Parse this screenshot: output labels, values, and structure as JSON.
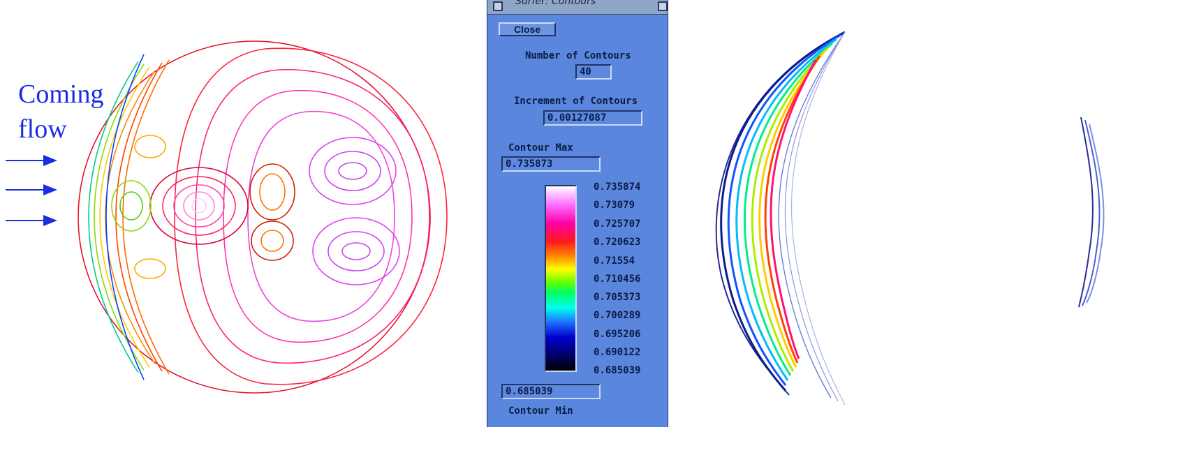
{
  "annotation": {
    "line1": "Coming",
    "line2": "flow",
    "color": "#1a2ee0"
  },
  "panel": {
    "title": "Surfer: Contours",
    "close_label": "Close",
    "number_of_contours_label": "Number of Contours",
    "number_of_contours_value": "40",
    "increment_label": "Increment of Contours",
    "increment_value": "0.00127087",
    "contour_max_label": "Contour Max",
    "contour_max_value": "0.735873",
    "contour_min_label": "Contour Min",
    "contour_min_value": "0.685039",
    "colorbar_ticks": [
      "0.735874",
      "0.73079",
      "0.725707",
      "0.720623",
      "0.71554",
      "0.710456",
      "0.705373",
      "0.700289",
      "0.695206",
      "0.690122",
      "0.685039"
    ],
    "background_color": "#5b86dd"
  },
  "icons": {
    "arrow": "right-arrow-icon",
    "menu": "window-menu-icon"
  }
}
